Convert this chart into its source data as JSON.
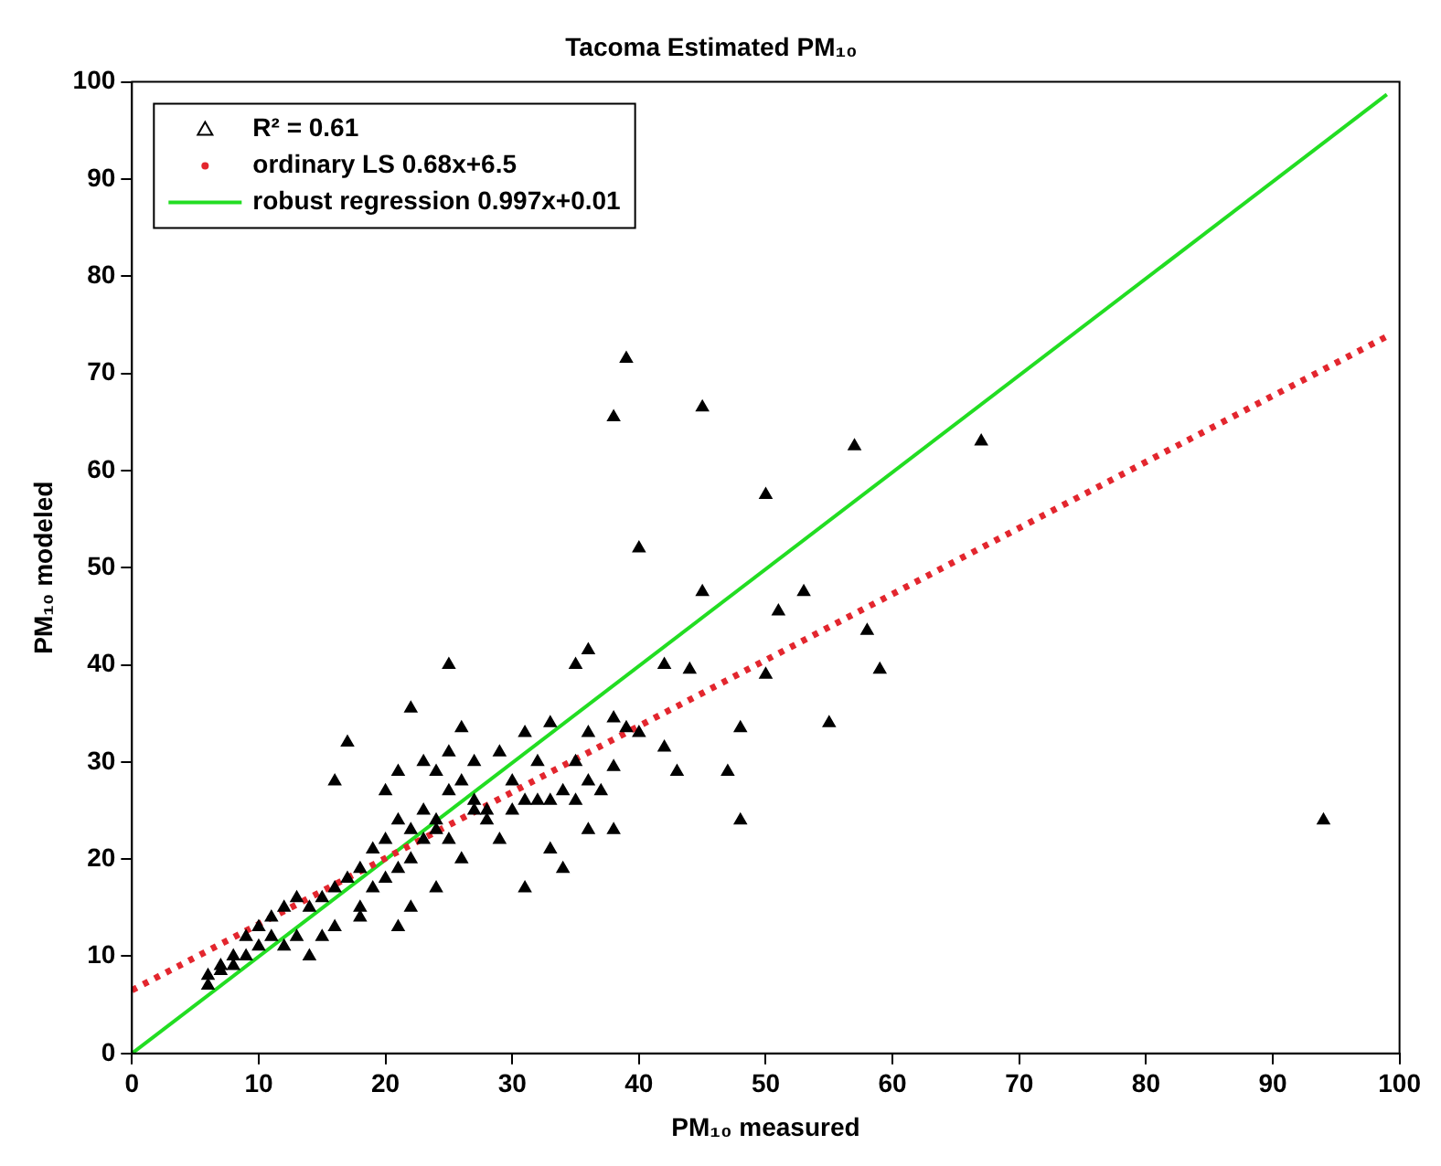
{
  "chart_data": {
    "type": "scatter",
    "title": "Tacoma Estimated PM₁₀",
    "xlabel": "PM₁₀ measured",
    "ylabel": "PM₁₀ modeled",
    "xlim": [
      0,
      100
    ],
    "xticks": [
      0,
      10,
      20,
      30,
      40,
      50,
      60,
      70,
      80,
      90,
      100
    ],
    "ylim": [
      0,
      100
    ],
    "yticks": [
      0,
      10,
      20,
      30,
      40,
      50,
      60,
      70,
      80,
      90,
      100
    ],
    "grid": false,
    "legend": "top left",
    "series": [
      {
        "name": "R² = 0.61",
        "type": "scatter",
        "marker": "triangle",
        "color": "#000000",
        "x": [
          38,
          39,
          40,
          45,
          45,
          50,
          51,
          53,
          55,
          57,
          58,
          59,
          67,
          94,
          48,
          48,
          47,
          50,
          42,
          44,
          36,
          35,
          38,
          39,
          40,
          42,
          43,
          38,
          37,
          35,
          36,
          34,
          32,
          33,
          34,
          31,
          29,
          28,
          27,
          26,
          25,
          22,
          17,
          16,
          20,
          21,
          23,
          24,
          25,
          27,
          30,
          31,
          29,
          30,
          32,
          33,
          35,
          36,
          26,
          24,
          22,
          21,
          18,
          25,
          20,
          19,
          18,
          17,
          16,
          15,
          14,
          13,
          12,
          11,
          10,
          9,
          8,
          7,
          6,
          6,
          7,
          8,
          9,
          10,
          11,
          12,
          13,
          14,
          15,
          16,
          18,
          19,
          20,
          21,
          22,
          23,
          24,
          22,
          21,
          23,
          24,
          25,
          26,
          27,
          28,
          31,
          33,
          36,
          38
        ],
        "values": [
          65.5,
          71.5,
          52,
          66.5,
          47.5,
          57.5,
          45.5,
          47.5,
          34,
          62.5,
          43.5,
          39.5,
          63,
          24,
          33.5,
          24,
          29,
          39,
          40,
          39.5,
          41.5,
          40,
          34.5,
          33.5,
          33,
          31.5,
          29,
          29.5,
          27,
          26,
          23,
          27,
          26,
          21,
          19,
          17,
          22,
          25,
          30,
          33.5,
          40,
          35.5,
          32,
          28,
          27,
          29,
          30,
          29,
          27,
          25,
          25,
          26,
          31,
          28,
          30,
          34,
          30,
          33,
          20,
          17,
          15,
          13,
          14,
          22,
          22,
          21,
          19,
          18,
          17,
          16,
          15,
          16,
          15,
          14,
          13,
          12,
          10,
          9,
          8,
          7,
          8.5,
          9,
          10,
          11,
          12,
          11,
          12,
          10,
          12,
          13,
          15,
          17,
          18,
          19,
          20,
          22,
          23,
          23,
          24,
          25,
          24,
          31,
          28,
          26,
          24,
          33,
          26,
          28,
          23
        ]
      },
      {
        "name": "ordinary LS 0.68x+6.5",
        "type": "line",
        "line_style": "dotted",
        "marker": "none",
        "color": "#e3262e",
        "x": [
          0,
          99
        ],
        "values": [
          6.5,
          73.8
        ]
      },
      {
        "name": "robust regression 0.997x+0.01",
        "type": "line",
        "line_style": "solid",
        "marker": "none",
        "color": "#22dd22",
        "x": [
          0,
          99
        ],
        "values": [
          0,
          98.7
        ]
      }
    ]
  }
}
